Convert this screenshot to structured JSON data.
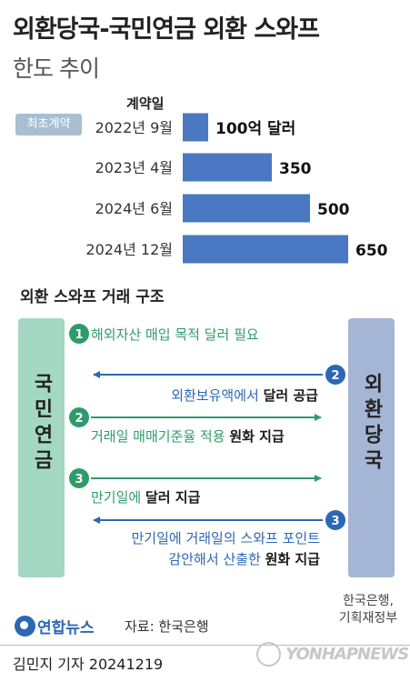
{
  "title": "외환당국-국민연금 외환 스와프",
  "subtitle": "한도 추이",
  "chart_data": {
    "type": "bar",
    "orientation": "horizontal",
    "column_header": "계약일",
    "first_contract_badge": "최초계약",
    "categories": [
      "2022년 9월",
      "2023년 4월",
      "2024년 6월",
      "2024년 12월"
    ],
    "values": [
      100,
      350,
      500,
      650
    ],
    "value_labels": [
      "100억 달러",
      "350",
      "500",
      "650"
    ],
    "unit": "억 달러",
    "xlim": [
      0,
      650
    ],
    "bar_color": "#4a78c2",
    "grid": false
  },
  "structure": {
    "title": "외환 스와프 거래 구조",
    "left_party": "국민연금",
    "right_party": "외환당국",
    "steps": [
      {
        "num": "1",
        "text": "해외자산 매입 목적 달러 필요",
        "bold": "",
        "direction": "none",
        "color": "#2e9b6b"
      },
      {
        "num": "2",
        "text": "외환보유액에서 ",
        "bold": "달러 공급",
        "direction": "left",
        "color": "#2c67b5"
      },
      {
        "num": "2",
        "text": "거래일 매매기준율 적용 ",
        "bold": "원화 지급",
        "direction": "right",
        "color": "#2e9b6b"
      },
      {
        "num": "3",
        "text": "만기일에 ",
        "bold": "달러 지급",
        "direction": "right",
        "color": "#2e9b6b"
      },
      {
        "num": "3",
        "text": "만기일에 거래일의 스와프 포인트",
        "text2": "감안해서 산출한 ",
        "bold": "원화 지급",
        "direction": "left",
        "color": "#2c67b5"
      }
    ],
    "gov_label_line1": "한국은행,",
    "gov_label_line2": "기획재정부"
  },
  "footer": {
    "logo": "연합뉴스",
    "source": "자료: 한국은행",
    "byline": "김민지 기자  20241219",
    "watermark": "YONHAPNEWS"
  },
  "colors": {
    "nps": "#a4d8c4",
    "bok": "#a5b5d6",
    "green": "#2e9b6b",
    "blue": "#2c67b5"
  }
}
